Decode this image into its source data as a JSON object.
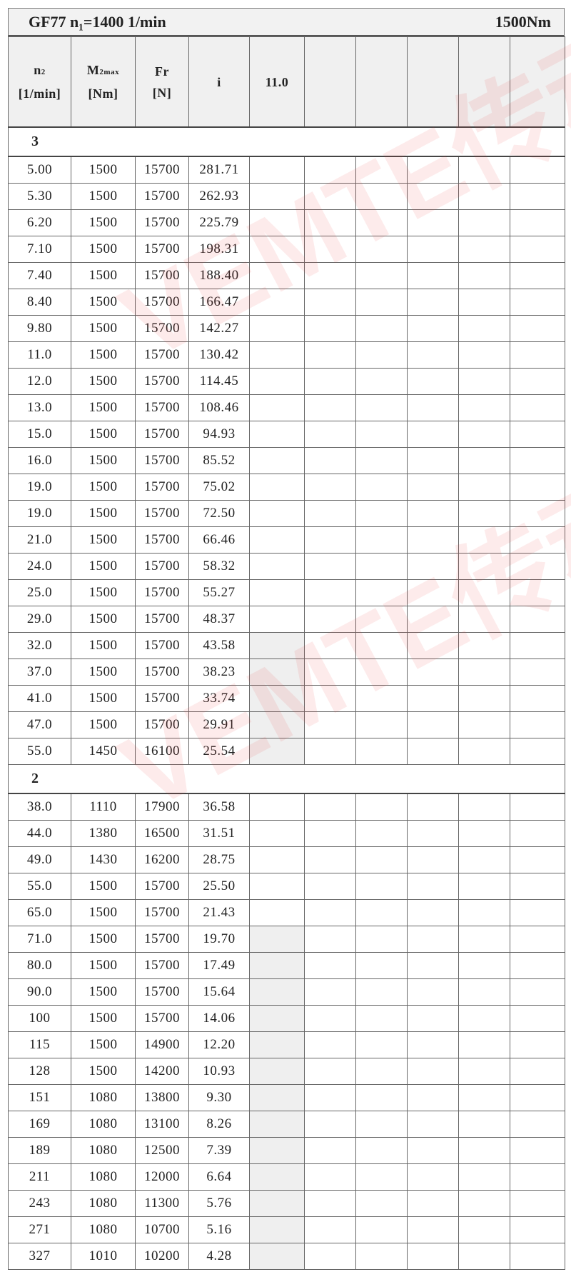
{
  "title": {
    "left": "GF77 n₁=1400 1/min",
    "right": "1500Nm"
  },
  "headers": {
    "n2_main": "n",
    "n2_sub": "2",
    "n2_unit": "[1/min]",
    "m_main": "M",
    "m_sub": "2max",
    "m_unit": "[Nm]",
    "fr_main": "Fr",
    "fr_unit": "[N]",
    "i": "i",
    "motor_col": "11.0"
  },
  "watermark": "VEMTE传动",
  "groups": [
    {
      "label": "3",
      "rows": [
        [
          "5.00",
          "1500",
          "15700",
          "281.71",
          false
        ],
        [
          "5.30",
          "1500",
          "15700",
          "262.93",
          false
        ],
        [
          "6.20",
          "1500",
          "15700",
          "225.79",
          false
        ],
        [
          "7.10",
          "1500",
          "15700",
          "198.31",
          false
        ],
        [
          "7.40",
          "1500",
          "15700",
          "188.40",
          false
        ],
        [
          "8.40",
          "1500",
          "15700",
          "166.47",
          false
        ],
        [
          "9.80",
          "1500",
          "15700",
          "142.27",
          false
        ],
        [
          "11.0",
          "1500",
          "15700",
          "130.42",
          false
        ],
        [
          "12.0",
          "1500",
          "15700",
          "114.45",
          false
        ],
        [
          "13.0",
          "1500",
          "15700",
          "108.46",
          false
        ],
        [
          "15.0",
          "1500",
          "15700",
          "94.93",
          false
        ],
        [
          "16.0",
          "1500",
          "15700",
          "85.52",
          false
        ],
        [
          "19.0",
          "1500",
          "15700",
          "75.02",
          false
        ],
        [
          "19.0",
          "1500",
          "15700",
          "72.50",
          false
        ],
        [
          "21.0",
          "1500",
          "15700",
          "66.46",
          false
        ],
        [
          "24.0",
          "1500",
          "15700",
          "58.32",
          false
        ],
        [
          "25.0",
          "1500",
          "15700",
          "55.27",
          false
        ],
        [
          "29.0",
          "1500",
          "15700",
          "48.37",
          false
        ],
        [
          "32.0",
          "1500",
          "15700",
          "43.58",
          true
        ],
        [
          "37.0",
          "1500",
          "15700",
          "38.23",
          true
        ],
        [
          "41.0",
          "1500",
          "15700",
          "33.74",
          true
        ],
        [
          "47.0",
          "1500",
          "15700",
          "29.91",
          true
        ],
        [
          "55.0",
          "1450",
          "16100",
          "25.54",
          true
        ]
      ]
    },
    {
      "label": "2",
      "rows": [
        [
          "38.0",
          "1110",
          "17900",
          "36.58",
          false
        ],
        [
          "44.0",
          "1380",
          "16500",
          "31.51",
          false
        ],
        [
          "49.0",
          "1430",
          "16200",
          "28.75",
          false
        ],
        [
          "55.0",
          "1500",
          "15700",
          "25.50",
          false
        ],
        [
          "65.0",
          "1500",
          "15700",
          "21.43",
          false
        ],
        [
          "71.0",
          "1500",
          "15700",
          "19.70",
          true
        ],
        [
          "80.0",
          "1500",
          "15700",
          "17.49",
          true
        ],
        [
          "90.0",
          "1500",
          "15700",
          "15.64",
          true
        ],
        [
          "100",
          "1500",
          "15700",
          "14.06",
          true
        ],
        [
          "115",
          "1500",
          "14900",
          "12.20",
          true
        ],
        [
          "128",
          "1500",
          "14200",
          "10.93",
          true
        ],
        [
          "151",
          "1080",
          "13800",
          "9.30",
          true
        ],
        [
          "169",
          "1080",
          "13100",
          "8.26",
          true
        ],
        [
          "189",
          "1080",
          "12500",
          "7.39",
          true
        ],
        [
          "211",
          "1080",
          "12000",
          "6.64",
          true
        ],
        [
          "243",
          "1080",
          "11300",
          "5.76",
          true
        ],
        [
          "271",
          "1080",
          "10700",
          "5.16",
          true
        ],
        [
          "327",
          "1010",
          "10200",
          "4.28",
          true
        ]
      ]
    }
  ]
}
